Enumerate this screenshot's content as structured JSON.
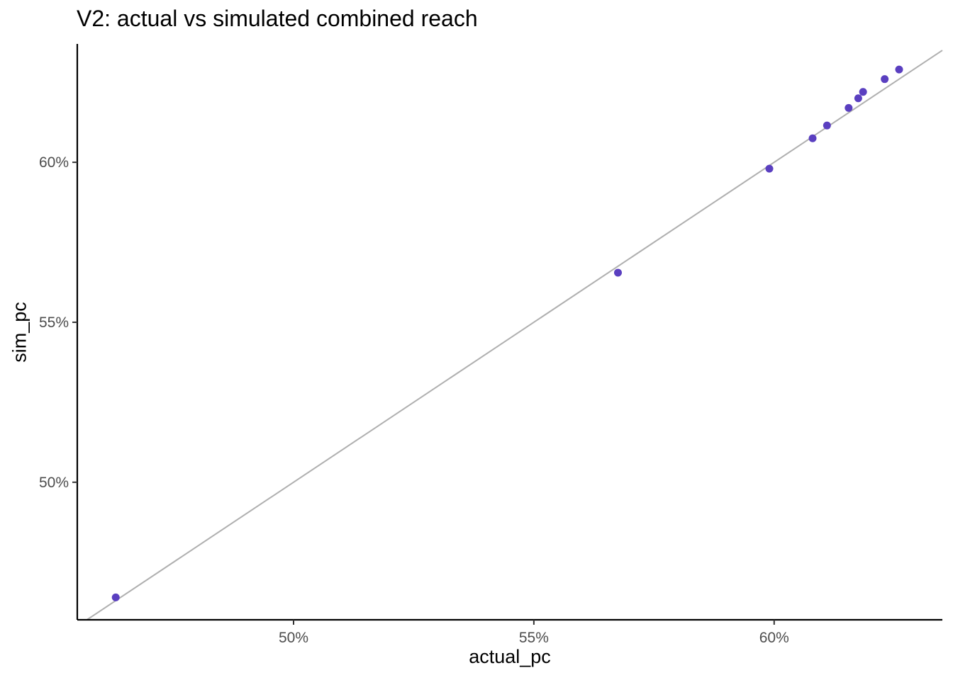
{
  "chart_data": {
    "type": "scatter",
    "title": "V2: actual vs simulated combined reach",
    "xlabel": "actual_pc",
    "ylabel": "sim_pc",
    "xlim": [
      45.5,
      63.5
    ],
    "ylim": [
      45.7,
      63.7
    ],
    "x_ticks": [
      50,
      55,
      60
    ],
    "y_ticks": [
      50,
      55,
      60
    ],
    "x_tick_labels": [
      "50%",
      "55%",
      "60%"
    ],
    "y_tick_labels": [
      "50%",
      "55%",
      "60%"
    ],
    "reference_line": "y = x",
    "grid": false,
    "legend": "none",
    "colors": {
      "points": "#5A3FC0",
      "reference_line": "#AFAFAF",
      "axis": "#000000",
      "tick_text": "#4D4D4D"
    },
    "points": [
      {
        "x": 46.3,
        "y": 46.4
      },
      {
        "x": 56.75,
        "y": 56.55
      },
      {
        "x": 59.9,
        "y": 59.8
      },
      {
        "x": 60.8,
        "y": 60.75
      },
      {
        "x": 61.1,
        "y": 61.15
      },
      {
        "x": 61.55,
        "y": 61.7
      },
      {
        "x": 61.75,
        "y": 62.0
      },
      {
        "x": 61.85,
        "y": 62.2
      },
      {
        "x": 62.3,
        "y": 62.6
      },
      {
        "x": 62.6,
        "y": 62.9
      }
    ]
  }
}
